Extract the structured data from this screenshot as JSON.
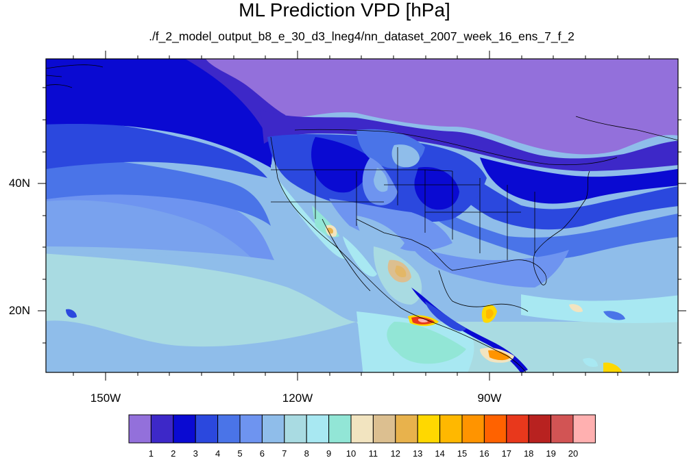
{
  "title": "ML Prediction VPD [hPa]",
  "subtitle": "./f_2_model_output_b8_e_30_d3_lneg4/nn_dataset_2007_week_16_ens_7_f_2",
  "lon_labels": [
    "150W",
    "120W",
    "90W"
  ],
  "lat_labels": [
    "40N",
    "20N"
  ],
  "colorbar": {
    "colors": [
      "#9370db",
      "#3d28c8",
      "#0a0ad2",
      "#2b48de",
      "#4a74e8",
      "#6e94f0",
      "#8fbdea",
      "#a9dbe2",
      "#a8e8f2",
      "#92e6d6",
      "#f2e4c0",
      "#dcbf90",
      "#e8b24c",
      "#ffd800",
      "#ffb800",
      "#ff9400",
      "#ff6200",
      "#e8381c",
      "#b82220",
      "#d25454",
      "#ffb0b0"
    ],
    "labels": [
      "1",
      "2",
      "3",
      "4",
      "5",
      "6",
      "7",
      "8",
      "9",
      "10",
      "11",
      "12",
      "13",
      "14",
      "15",
      "16",
      "17",
      "18",
      "19",
      "20"
    ]
  }
}
